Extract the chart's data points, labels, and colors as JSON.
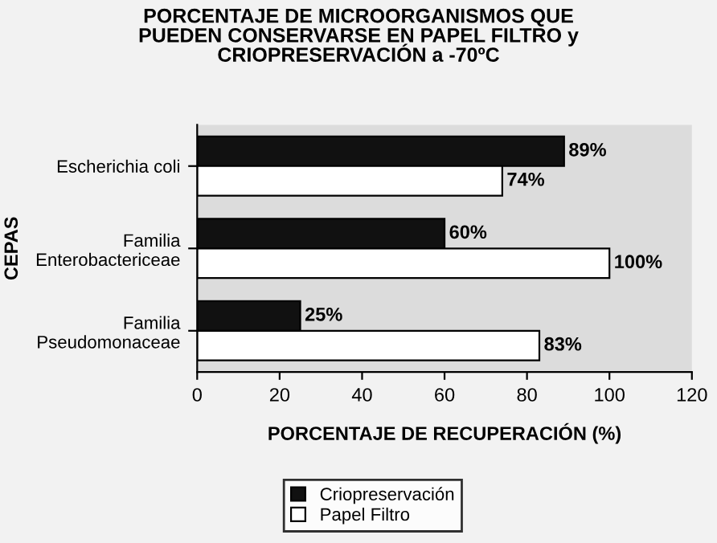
{
  "chart_data": {
    "type": "bar",
    "orientation": "horizontal",
    "title": "PORCENTAJE DE MICROORGANISMOS QUE\nPUEDEN CONSERVARSE EN PAPEL FILTRO y\nCRIOPRESERVACIÓN a -70ºC",
    "xlabel": "PORCENTAJE DE RECUPERACIÓN (%)",
    "ylabel": "CEPAS",
    "categories": [
      "Escherichia coli",
      "Familia\nEnterobactericeae",
      "Familia\nPseudomonaceae"
    ],
    "series": [
      {
        "name": "Criopreservación",
        "color": "#111111",
        "values": [
          89,
          60,
          25
        ],
        "value_labels": [
          "89%",
          "60%",
          "25%"
        ]
      },
      {
        "name": "Papel Filtro",
        "color": "#ffffff",
        "values": [
          74,
          100,
          83
        ],
        "value_labels": [
          "74%",
          "100%",
          "83%"
        ]
      }
    ],
    "xlim": [
      0,
      120
    ],
    "xticks": [
      0,
      20,
      40,
      60,
      80,
      100,
      120
    ],
    "grid": false,
    "legend": "bottom"
  }
}
